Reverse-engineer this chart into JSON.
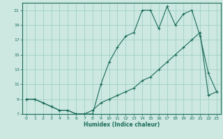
{
  "title": "",
  "xlabel": "Humidex (Indice chaleur)",
  "bg_color": "#cce8e0",
  "grid_color": "#99ccc0",
  "line_color": "#1a6b5a",
  "xlim": [
    -0.5,
    23.5
  ],
  "ylim": [
    7,
    22
  ],
  "xticks": [
    0,
    1,
    2,
    3,
    4,
    5,
    6,
    7,
    8,
    9,
    10,
    11,
    12,
    13,
    14,
    15,
    16,
    17,
    18,
    19,
    20,
    21,
    22,
    23
  ],
  "yticks": [
    7,
    9,
    11,
    13,
    15,
    17,
    19,
    21
  ],
  "line1_x": [
    0,
    1,
    2,
    3,
    4,
    5,
    6,
    7,
    8,
    9,
    10,
    11,
    12,
    13,
    14,
    15,
    16,
    17,
    18,
    19,
    20,
    21,
    22,
    23
  ],
  "line1_y": [
    9.0,
    9.0,
    8.5,
    8.0,
    7.5,
    7.5,
    7.0,
    7.0,
    7.0,
    11.0,
    14.0,
    16.0,
    17.5,
    18.0,
    21.0,
    21.0,
    18.5,
    21.5,
    19.0,
    20.5,
    21.0,
    17.5,
    12.5,
    10.0
  ],
  "line2_x": [
    0,
    1,
    2,
    3,
    4,
    5,
    6,
    7,
    8,
    9,
    10,
    11,
    12,
    13,
    14,
    15,
    16,
    17,
    18,
    19,
    20,
    21,
    22,
    23
  ],
  "line2_y": [
    9.0,
    9.0,
    8.5,
    8.0,
    7.5,
    7.5,
    7.0,
    7.0,
    7.5,
    8.5,
    9.0,
    9.5,
    10.0,
    10.5,
    11.5,
    12.0,
    13.0,
    14.0,
    15.0,
    16.0,
    17.0,
    18.0,
    9.5,
    10.0
  ]
}
